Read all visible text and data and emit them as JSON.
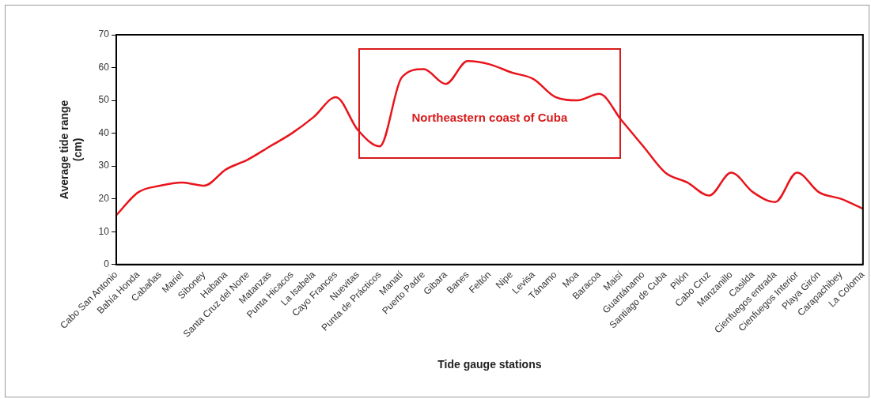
{
  "chart_data": {
    "type": "line",
    "xlabel": "Tide gauge stations",
    "ylabel": "Average tide range (cm)",
    "categories": [
      "Cabo San Antonio",
      "Bahía Honda",
      "Cabañas",
      "Mariel",
      "Siboney",
      "Habana",
      "Santa Cruz del Norte",
      "Matanzas",
      "Punta Hicacos",
      "La Isabela",
      "Cayo Frances",
      "Nuevitas",
      "Punta de Prácticos",
      "Manatí",
      "Puerto Padre",
      "Gibara",
      "Banes",
      "Feltón",
      "Nipe",
      "Levisa",
      "Tánamo",
      "Moa",
      "Baracoa",
      "Maisí",
      "Guantánamo",
      "Santiago de Cuba",
      "Pilón",
      "Cabo Cruz",
      "Manzanillo",
      "Casilda",
      "Cienfuegos entrada",
      "Cienfuegos Interior",
      "Playa Girón",
      "Carapachibey",
      "La Coloma"
    ],
    "series": [
      {
        "color": "#e8141b",
        "values": [
          15,
          22,
          24,
          25,
          24,
          29,
          32,
          36,
          40,
          45,
          51,
          41,
          36,
          57,
          59.5,
          55,
          62,
          61,
          58.5,
          56.5,
          51,
          50,
          52,
          44,
          36,
          28,
          25,
          21,
          28,
          22,
          19,
          28,
          22,
          20,
          17
        ]
      }
    ],
    "ylim": [
      0,
      70
    ],
    "yticks": [
      0,
      10,
      20,
      30,
      40,
      50,
      60,
      70
    ],
    "annotations": [
      "Northeastern coast of Cuba"
    ],
    "grid": false,
    "legend": false,
    "marker": "none",
    "line_style": "solid"
  }
}
